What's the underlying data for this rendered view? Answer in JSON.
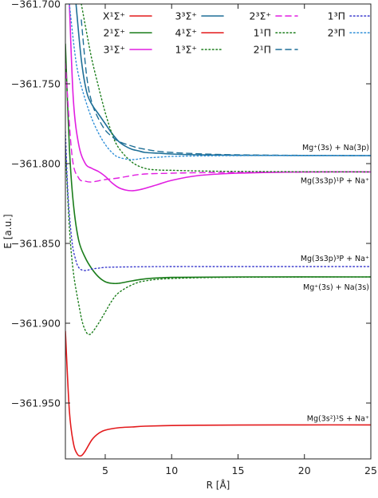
{
  "chart_data": {
    "type": "line",
    "title": "",
    "xlabel": "R [Å]",
    "ylabel": "E [a.u.]",
    "xlim": [
      2,
      25
    ],
    "ylim": [
      -361.985,
      -361.7
    ],
    "xticks": [
      5,
      10,
      15,
      20,
      25
    ],
    "xtick_labels": [
      "5",
      "10",
      "15",
      "20",
      "25"
    ],
    "yticks": [
      -361.95,
      -361.9,
      -361.85,
      -361.8,
      -361.75,
      -361.7
    ],
    "ytick_labels": [
      "−361.950",
      "−361.900",
      "−361.850",
      "−361.800",
      "−361.750",
      "−361.700"
    ],
    "grid": false,
    "legend_position": "top-right",
    "series": [
      {
        "name": "X¹Σ⁺",
        "color": "#e31a1c",
        "dash": "solid",
        "x": [
          2,
          2.3,
          2.6,
          2.9,
          3.2,
          3.5,
          4,
          4.5,
          5,
          6,
          7,
          8,
          10,
          12,
          15,
          20,
          25
        ],
        "y": [
          -361.905,
          -361.955,
          -361.975,
          -361.982,
          -361.983,
          -361.98,
          -361.973,
          -361.969,
          -361.967,
          -361.9655,
          -361.965,
          -361.9645,
          -361.9641,
          -361.9639,
          -361.9638,
          -361.9637,
          -361.9637
        ]
      },
      {
        "name": "2¹Σ⁺",
        "color": "#1b7d1b",
        "dash": "solid",
        "x": [
          2,
          2.3,
          2.6,
          3,
          3.5,
          4,
          4.5,
          5,
          5.5,
          6,
          7,
          8,
          10,
          15,
          25
        ],
        "y": [
          -361.725,
          -361.79,
          -361.825,
          -361.848,
          -361.859,
          -361.866,
          -361.871,
          -361.874,
          -361.875,
          -361.875,
          -361.8735,
          -361.8722,
          -361.8713,
          -361.871,
          -361.871
        ]
      },
      {
        "name": "3¹Σ⁺",
        "color": "#e11ee1",
        "dash": "solid",
        "x": [
          2.3,
          2.6,
          3,
          3.5,
          4,
          4.5,
          5,
          5.5,
          6,
          6.5,
          7,
          7.5,
          8,
          9,
          10,
          12,
          15,
          20,
          25
        ],
        "y": [
          -361.7,
          -361.76,
          -361.788,
          -361.8,
          -361.803,
          -361.805,
          -361.808,
          -361.812,
          -361.815,
          -361.8165,
          -361.817,
          -361.8165,
          -361.8155,
          -361.813,
          -361.8105,
          -361.8075,
          -361.806,
          -361.8052,
          -361.8052
        ]
      },
      {
        "name": "3³Σ⁺",
        "color": "#1f6f97",
        "dash": "solid",
        "x": [
          2.8,
          3.2,
          3.6,
          4,
          4.5,
          5,
          5.5,
          6,
          6.5,
          7,
          7.5,
          8,
          9,
          10,
          12,
          15,
          20,
          25
        ],
        "y": [
          -361.7,
          -361.735,
          -361.755,
          -361.763,
          -361.769,
          -361.775,
          -361.781,
          -361.786,
          -361.789,
          -361.791,
          -361.792,
          -361.793,
          -361.7935,
          -361.794,
          -361.7945,
          -361.7948,
          -361.7949,
          -361.795
        ]
      },
      {
        "name": "4¹Σ⁺",
        "color": "#e31a1c",
        "dash": "solid",
        "x": [],
        "y": []
      },
      {
        "name": "1³Σ⁺",
        "color": "#1b7d1b",
        "dash": "dotted",
        "x": [
          2,
          2.3,
          2.6,
          3,
          3.3,
          3.6,
          3.8,
          4,
          4.5,
          5,
          5.5,
          6,
          7,
          8,
          10,
          15,
          25
        ],
        "y": [
          -361.79,
          -361.84,
          -361.868,
          -361.888,
          -361.9,
          -361.906,
          -361.907,
          -361.906,
          -361.9,
          -361.893,
          -361.886,
          -361.881,
          -361.876,
          -361.8735,
          -361.872,
          -361.8712,
          -361.871
        ]
      },
      {
        "name": "2³Σ⁺",
        "color": "#e11ee1",
        "dash": "dashed",
        "x": [
          2,
          2.5,
          3,
          3.5,
          4,
          5,
          6,
          7,
          8,
          10,
          12,
          15,
          20,
          25
        ],
        "y": [
          -361.737,
          -361.795,
          -361.809,
          -361.811,
          -361.8115,
          -361.81,
          -361.809,
          -361.8075,
          -361.8065,
          -361.806,
          -361.8057,
          -361.8055,
          -361.8053,
          -361.8052
        ]
      },
      {
        "name": "1¹Π",
        "color": "#1b7d1b",
        "dash": "dotted",
        "x": [
          3.2,
          3.6,
          4,
          4.5,
          5,
          5.5,
          6,
          7,
          8,
          9,
          10,
          12,
          15,
          20,
          25
        ],
        "y": [
          -361.7,
          -361.718,
          -361.735,
          -361.752,
          -361.768,
          -361.781,
          -361.79,
          -361.799,
          -361.803,
          -361.804,
          -361.8042,
          -361.8046,
          -361.8049,
          -361.8051,
          -361.8052
        ]
      },
      {
        "name": "2¹Π",
        "color": "#1f6f97",
        "dash": "dashed",
        "x": [
          3.2,
          3.6,
          4,
          4.5,
          5,
          5.5,
          6,
          7,
          8,
          10,
          15,
          25
        ],
        "y": [
          -361.71,
          -361.745,
          -361.762,
          -361.772,
          -361.779,
          -361.783,
          -361.786,
          -361.789,
          -361.791,
          -361.793,
          -361.7945,
          -361.795
        ]
      },
      {
        "name": "1³Π",
        "color": "#3a3acd",
        "dash": "dotted",
        "x": [
          2,
          2.2,
          2.5,
          2.8,
          3,
          3.2,
          3.5,
          3.8,
          4,
          4.5,
          5,
          6,
          8,
          10,
          15,
          25
        ],
        "y": [
          -361.78,
          -361.82,
          -361.849,
          -361.861,
          -361.865,
          -361.8665,
          -361.867,
          -361.8665,
          -361.866,
          -361.8655,
          -361.865,
          -361.8648,
          -361.8646,
          -361.8645,
          -361.8645,
          -361.8645
        ]
      },
      {
        "name": "2³Π",
        "color": "#2f8fd8",
        "dash": "dotted",
        "x": [
          2.3,
          2.7,
          3,
          3.5,
          4,
          4.5,
          5,
          5.5,
          6,
          7,
          8,
          9,
          10,
          12,
          15,
          20,
          25
        ],
        "y": [
          -361.7,
          -361.73,
          -361.745,
          -361.76,
          -361.772,
          -361.781,
          -361.788,
          -361.793,
          -361.796,
          -361.7975,
          -361.7965,
          -361.796,
          -361.7955,
          -361.7952,
          -361.795,
          -361.795,
          -361.795
        ]
      }
    ],
    "annotations": [
      {
        "key": "mg3p",
        "text": "Mg⁺(3s) + Na(3p)",
        "x": 25,
        "y": -361.795
      },
      {
        "key": "mg1p",
        "text": "Mg(3s3p)¹P + Na⁺",
        "x": 25,
        "y": -361.8052
      },
      {
        "key": "mg3P",
        "text": "Mg(3s3p)³P + Na⁺",
        "x": 25,
        "y": -361.8645
      },
      {
        "key": "mg3s",
        "text": "Mg⁺(3s) + Na(3s)",
        "x": 25,
        "y": -361.871
      },
      {
        "key": "mg1s",
        "text": "Mg(3s²)¹S + Na⁺",
        "x": 25,
        "y": -361.9637
      }
    ]
  }
}
